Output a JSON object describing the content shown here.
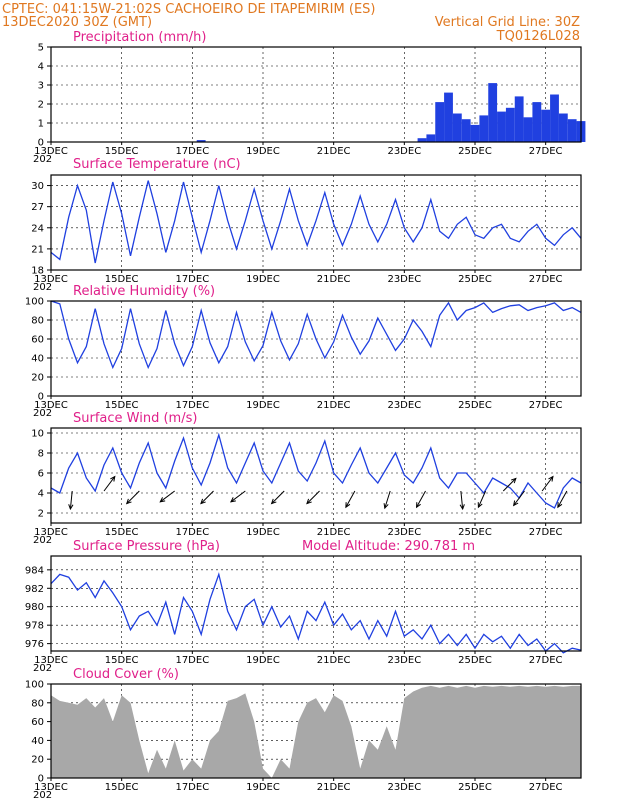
{
  "header": {
    "line1_left": "CPTEC:   041:15W-21:02S   CACHOEIRO DE ITAPEMIRIM (ES)",
    "line2_left": "13DEC2020 30Z (GMT)",
    "line2_right": "Vertical Grid Line: 30Z",
    "line3_right": "TQ0126L028"
  },
  "colors": {
    "header": "#e07820",
    "titles": "#e0208a",
    "line": "#2040e0",
    "cloud": "#a8a8a8",
    "grid": "#000000"
  },
  "x_axis": {
    "start": "13DEC 06Z",
    "labels": [
      "13DEC",
      "15DEC",
      "17DEC",
      "19DEC",
      "21DEC",
      "23DEC",
      "25DEC",
      "27DEC"
    ],
    "first_label_year_fragment": "202"
  },
  "chart_data": [
    {
      "type": "bar",
      "title": "Precipitation (mm/h)",
      "ylim": [
        0,
        5
      ],
      "yticks": [
        "0",
        "1",
        "2",
        "3",
        "4",
        "5"
      ],
      "x_days": [
        0,
        0.25,
        0.5,
        0.75,
        1,
        1.25,
        1.5,
        1.75,
        2,
        2.25,
        2.5,
        2.75,
        3,
        3.25,
        3.5,
        3.75,
        4,
        4.25,
        4.5,
        4.75,
        5,
        5.25,
        5.5,
        5.75,
        6,
        6.25,
        6.5,
        6.75,
        7,
        7.25,
        7.5,
        7.75,
        8,
        8.25,
        8.5,
        8.75,
        9,
        9.25,
        9.5,
        9.75,
        10,
        10.25,
        10.5,
        10.75,
        11,
        11.25,
        11.5,
        11.75,
        12,
        12.25,
        12.5,
        12.75,
        13,
        13.25,
        13.5,
        13.75,
        14,
        14.25,
        14.5,
        14.75,
        15
      ],
      "values": [
        0,
        0,
        0,
        0,
        0,
        0,
        0,
        0,
        0,
        0,
        0,
        0,
        0,
        0,
        0,
        0,
        0,
        0.1,
        0,
        0,
        0,
        0,
        0,
        0,
        0,
        0,
        0,
        0,
        0,
        0,
        0,
        0,
        0,
        0,
        0,
        0,
        0,
        0,
        0,
        0,
        0,
        0,
        0.2,
        0.4,
        2.1,
        2.6,
        1.5,
        1.2,
        0.9,
        1.4,
        3.1,
        1.6,
        1.8,
        2.4,
        1.3,
        2.1,
        1.7,
        2.5,
        1.5,
        1.2,
        1.1
      ]
    },
    {
      "type": "line",
      "title": "Surface Temperature (nC)",
      "ylim": [
        18,
        31.5
      ],
      "yticks": [
        "18",
        "21",
        "24",
        "27",
        "30"
      ],
      "x_days": [
        0,
        0.25,
        0.5,
        0.75,
        1,
        1.25,
        1.5,
        1.75,
        2,
        2.25,
        2.5,
        2.75,
        3,
        3.25,
        3.5,
        3.75,
        4,
        4.25,
        4.5,
        4.75,
        5,
        5.25,
        5.5,
        5.75,
        6,
        6.25,
        6.5,
        6.75,
        7,
        7.25,
        7.5,
        7.75,
        8,
        8.25,
        8.5,
        8.75,
        9,
        9.25,
        9.5,
        9.75,
        10,
        10.25,
        10.5,
        10.75,
        11,
        11.25,
        11.5,
        11.75,
        12,
        12.25,
        12.5,
        12.75,
        13,
        13.25,
        13.5,
        13.75,
        14,
        14.25,
        14.5,
        14.75,
        15
      ],
      "values": [
        20.5,
        19.5,
        25.5,
        30.0,
        26.5,
        19.0,
        25.0,
        30.5,
        26.0,
        20.0,
        25.5,
        30.7,
        26.0,
        20.5,
        25.0,
        30.5,
        25.5,
        20.5,
        25.0,
        30.0,
        25.0,
        21.0,
        25.0,
        29.5,
        25.0,
        21.0,
        25.0,
        29.5,
        25.0,
        21.5,
        25.0,
        29.0,
        24.5,
        21.5,
        24.5,
        28.5,
        24.5,
        22.0,
        24.5,
        28.0,
        24.0,
        22.0,
        24.0,
        28.0,
        23.5,
        22.5,
        24.5,
        25.5,
        23.0,
        22.5,
        24.0,
        24.5,
        22.5,
        22.0,
        23.5,
        24.5,
        22.5,
        21.5,
        23.0,
        24.0,
        22.5
      ]
    },
    {
      "type": "line",
      "title": "Relative Humidity (%)",
      "ylim": [
        0,
        100
      ],
      "yticks": [
        "0",
        "20",
        "40",
        "60",
        "80",
        "100"
      ],
      "x_days": [
        0,
        0.25,
        0.5,
        0.75,
        1,
        1.25,
        1.5,
        1.75,
        2,
        2.25,
        2.5,
        2.75,
        3,
        3.25,
        3.5,
        3.75,
        4,
        4.25,
        4.5,
        4.75,
        5,
        5.25,
        5.5,
        5.75,
        6,
        6.25,
        6.5,
        6.75,
        7,
        7.25,
        7.5,
        7.75,
        8,
        8.25,
        8.5,
        8.75,
        9,
        9.25,
        9.5,
        9.75,
        10,
        10.25,
        10.5,
        10.75,
        11,
        11.25,
        11.5,
        11.75,
        12,
        12.25,
        12.5,
        12.75,
        13,
        13.25,
        13.5,
        13.75,
        14,
        14.25,
        14.5,
        14.75,
        15
      ],
      "values": [
        100,
        97,
        60,
        35,
        52,
        92,
        55,
        30,
        50,
        92,
        55,
        30,
        50,
        90,
        55,
        32,
        52,
        90,
        56,
        35,
        52,
        88,
        57,
        37,
        53,
        88,
        58,
        38,
        55,
        86,
        60,
        40,
        57,
        85,
        62,
        44,
        58,
        82,
        65,
        48,
        60,
        80,
        68,
        52,
        85,
        98,
        80,
        90,
        93,
        98,
        88,
        92,
        95,
        96,
        90,
        93,
        95,
        98,
        90,
        93,
        88
      ]
    },
    {
      "type": "line",
      "title": "Surface Wind (m/s)",
      "ylim": [
        1,
        10.5
      ],
      "yticks": [
        "2",
        "4",
        "6",
        "8",
        "10"
      ],
      "x_days": [
        0,
        0.25,
        0.5,
        0.75,
        1,
        1.25,
        1.5,
        1.75,
        2,
        2.25,
        2.5,
        2.75,
        3,
        3.25,
        3.5,
        3.75,
        4,
        4.25,
        4.5,
        4.75,
        5,
        5.25,
        5.5,
        5.75,
        6,
        6.25,
        6.5,
        6.75,
        7,
        7.25,
        7.5,
        7.75,
        8,
        8.25,
        8.5,
        8.75,
        9,
        9.25,
        9.5,
        9.75,
        10,
        10.25,
        10.5,
        10.75,
        11,
        11.25,
        11.5,
        11.75,
        12,
        12.25,
        12.5,
        12.75,
        13,
        13.25,
        13.5,
        13.75,
        14,
        14.25,
        14.5,
        14.75,
        15
      ],
      "values": [
        4.5,
        4.0,
        6.5,
        8.0,
        5.5,
        4.2,
        6.8,
        8.5,
        6.0,
        4.5,
        7.0,
        9.0,
        6.0,
        4.5,
        7.2,
        9.5,
        6.5,
        4.8,
        7.0,
        9.8,
        6.5,
        5.0,
        7.0,
        9.0,
        6.2,
        5.0,
        7.0,
        9.0,
        6.2,
        5.2,
        7.0,
        9.2,
        6.0,
        5.0,
        6.8,
        8.5,
        6.0,
        5.0,
        6.5,
        8.0,
        5.8,
        5.0,
        6.5,
        8.5,
        5.5,
        4.5,
        6.0,
        6.0,
        5.0,
        4.0,
        5.5,
        5.0,
        4.5,
        3.5,
        5.0,
        4.0,
        3.0,
        2.5,
        4.5,
        5.5,
        5.0
      ],
      "wind_vectors": [
        {
          "day": 0.6,
          "u": -0.1,
          "v": -1.0
        },
        {
          "day": 1.5,
          "u": 0.6,
          "v": 0.8
        },
        {
          "day": 2.5,
          "u": -0.7,
          "v": -0.7
        },
        {
          "day": 3.5,
          "u": -0.8,
          "v": -0.6
        },
        {
          "day": 4.6,
          "u": -0.7,
          "v": -0.7
        },
        {
          "day": 5.5,
          "u": -0.8,
          "v": -0.6
        },
        {
          "day": 6.6,
          "u": -0.7,
          "v": -0.7
        },
        {
          "day": 7.6,
          "u": -0.7,
          "v": -0.7
        },
        {
          "day": 8.6,
          "u": -0.5,
          "v": -0.9
        },
        {
          "day": 9.6,
          "u": -0.3,
          "v": -0.95
        },
        {
          "day": 10.6,
          "u": -0.5,
          "v": -0.9
        },
        {
          "day": 11.6,
          "u": 0.1,
          "v": -1.0
        },
        {
          "day": 12.3,
          "u": -0.4,
          "v": -0.9
        },
        {
          "day": 12.8,
          "u": 0.7,
          "v": 0.7
        },
        {
          "day": 13.4,
          "u": -0.6,
          "v": -0.8
        },
        {
          "day": 13.9,
          "u": 0.6,
          "v": 0.8
        },
        {
          "day": 14.6,
          "u": -0.5,
          "v": -0.9
        }
      ]
    },
    {
      "type": "line",
      "title": "Surface Pressure (hPa)",
      "annotation": "Model Altitude: 290.781  m",
      "ylim": [
        975.2,
        985.5
      ],
      "yticks": [
        "976",
        "978",
        "980",
        "982",
        "984"
      ],
      "x_days": [
        0,
        0.25,
        0.5,
        0.75,
        1,
        1.25,
        1.5,
        1.75,
        2,
        2.25,
        2.5,
        2.75,
        3,
        3.25,
        3.5,
        3.75,
        4,
        4.25,
        4.5,
        4.75,
        5,
        5.25,
        5.5,
        5.75,
        6,
        6.25,
        6.5,
        6.75,
        7,
        7.25,
        7.5,
        7.75,
        8,
        8.25,
        8.5,
        8.75,
        9,
        9.25,
        9.5,
        9.75,
        10,
        10.25,
        10.5,
        10.75,
        11,
        11.25,
        11.5,
        11.75,
        12,
        12.25,
        12.5,
        12.75,
        13,
        13.25,
        13.5,
        13.75,
        14,
        14.25,
        14.5,
        14.75,
        15
      ],
      "values": [
        982.5,
        983.5,
        983.2,
        981.8,
        982.6,
        981.0,
        982.8,
        981.5,
        980.0,
        977.5,
        979.0,
        979.5,
        978.0,
        980.5,
        977.0,
        981.0,
        979.5,
        977.0,
        980.8,
        983.5,
        979.5,
        977.5,
        980.0,
        980.8,
        978.0,
        980.0,
        977.8,
        979.0,
        976.5,
        979.5,
        978.5,
        980.5,
        978.0,
        979.2,
        977.5,
        978.5,
        976.5,
        978.5,
        976.8,
        979.5,
        976.8,
        977.5,
        976.5,
        978.0,
        976.0,
        977.0,
        975.8,
        977.0,
        975.5,
        977.0,
        976.2,
        976.8,
        975.5,
        977.0,
        975.8,
        976.5,
        975.2,
        976.0,
        975.0,
        975.5,
        975.3
      ]
    },
    {
      "type": "area",
      "title": "Cloud Cover (%)",
      "ylim": [
        0,
        100
      ],
      "yticks": [
        "0",
        "20",
        "40",
        "60",
        "80",
        "100"
      ],
      "x_days": [
        0,
        0.25,
        0.5,
        0.75,
        1,
        1.25,
        1.5,
        1.75,
        2,
        2.25,
        2.5,
        2.75,
        3,
        3.25,
        3.5,
        3.75,
        4,
        4.25,
        4.5,
        4.75,
        5,
        5.25,
        5.5,
        5.75,
        6,
        6.25,
        6.5,
        6.75,
        7,
        7.25,
        7.5,
        7.75,
        8,
        8.25,
        8.5,
        8.75,
        9,
        9.25,
        9.5,
        9.75,
        10,
        10.25,
        10.5,
        10.75,
        11,
        11.25,
        11.5,
        11.75,
        12,
        12.25,
        12.5,
        12.75,
        13,
        13.25,
        13.5,
        13.75,
        14,
        14.25,
        14.5,
        14.75,
        15
      ],
      "values": [
        88,
        82,
        80,
        78,
        85,
        75,
        85,
        60,
        88,
        80,
        40,
        5,
        30,
        10,
        40,
        8,
        20,
        10,
        40,
        50,
        82,
        85,
        90,
        60,
        10,
        0,
        20,
        10,
        60,
        80,
        85,
        70,
        88,
        82,
        55,
        10,
        40,
        30,
        55,
        30,
        85,
        92,
        96,
        98,
        96,
        98,
        96,
        98,
        96,
        98,
        97,
        98,
        97,
        98,
        97,
        98,
        97,
        98,
        97,
        98,
        98
      ]
    }
  ]
}
